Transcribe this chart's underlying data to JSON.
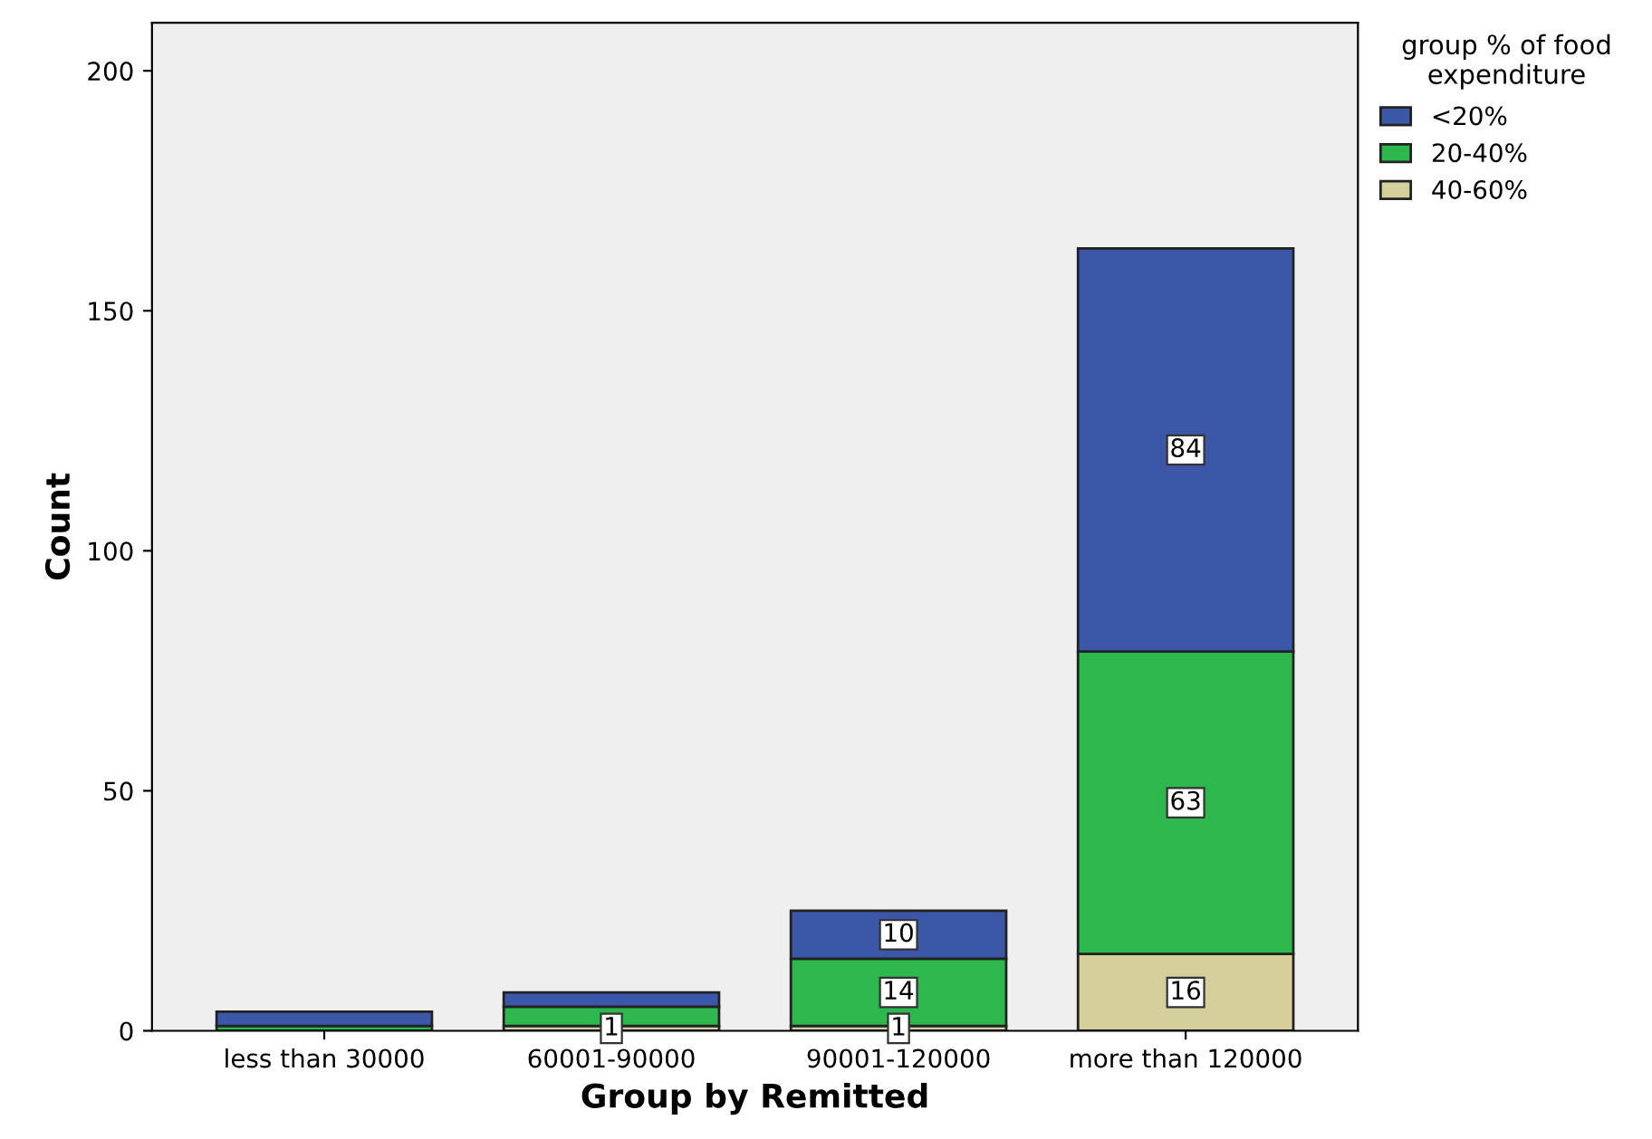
{
  "chart_data": {
    "type": "bar",
    "stacked": true,
    "xlabel": "Group by Remitted",
    "ylabel": "Count",
    "legend_title": "group % of food expenditure",
    "categories": [
      "less than 30000",
      "60001-90000",
      "90001-120000",
      "more than 120000"
    ],
    "series": [
      {
        "name": "40-60%",
        "color": "#d4cf9b",
        "values": [
          0,
          1,
          1,
          16
        ],
        "value_labels": [
          null,
          "1",
          "1",
          "16"
        ]
      },
      {
        "name": "20-40%",
        "color": "#2db84d",
        "values": [
          1,
          4,
          14,
          63
        ],
        "value_labels": [
          null,
          null,
          "14",
          "63"
        ]
      },
      {
        "name": "<20%",
        "color": "#3c57a8",
        "values": [
          3,
          3,
          10,
          84
        ],
        "value_labels": [
          null,
          null,
          "10",
          "84"
        ]
      }
    ],
    "ylim": [
      0,
      210
    ],
    "yticks": [
      0,
      50,
      100,
      150,
      200
    ],
    "grid": false,
    "legend": "top right"
  }
}
